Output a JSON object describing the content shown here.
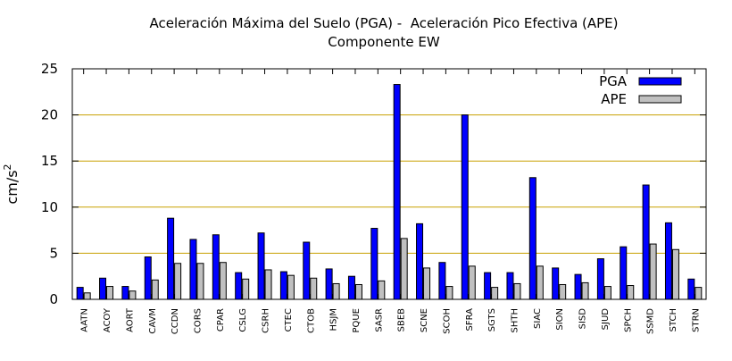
{
  "chart_data": {
    "type": "bar",
    "title": "Aceleración Máxima del Suelo (PGA) -  Aceleración Pico Efectiva (APE)",
    "subtitle": "Componente EW",
    "ylabel": "cm/s",
    "ylabel_sup": "2",
    "xlabel": "",
    "ylim": [
      0,
      25
    ],
    "yticks": [
      0,
      5,
      10,
      15,
      20,
      25
    ],
    "grid": "horizontal",
    "legend_position": "top-right",
    "categories": [
      "AATN",
      "ACOY",
      "AORT",
      "CAVM",
      "CCDN",
      "CORS",
      "CPAR",
      "CSLG",
      "CSRH",
      "CTEC",
      "CTOB",
      "HSJM",
      "PQUE",
      "SASR",
      "SBEB",
      "SCNE",
      "SCOH",
      "SFRA",
      "SGTS",
      "SHTH",
      "SIAC",
      "SION",
      "SISD",
      "SJUD",
      "SPCH",
      "SSMD",
      "STCH",
      "STRN"
    ],
    "series": [
      {
        "name": "PGA",
        "color": "#0000ff",
        "values": [
          1.3,
          2.3,
          1.4,
          4.6,
          8.8,
          6.5,
          7.0,
          2.9,
          7.2,
          3.0,
          6.2,
          3.3,
          2.5,
          7.7,
          23.3,
          8.2,
          4.0,
          20.0,
          2.9,
          2.9,
          13.2,
          3.4,
          2.7,
          4.4,
          5.7,
          12.4,
          8.3,
          2.2
        ]
      },
      {
        "name": "APE",
        "color": "#c0c0c0",
        "values": [
          0.7,
          1.4,
          0.9,
          2.1,
          3.9,
          3.9,
          4.0,
          2.2,
          3.2,
          2.6,
          2.3,
          1.7,
          1.6,
          2.0,
          6.6,
          3.4,
          1.4,
          3.6,
          1.3,
          1.7,
          3.6,
          1.6,
          1.8,
          1.4,
          1.5,
          6.0,
          5.4,
          1.3
        ]
      }
    ]
  }
}
